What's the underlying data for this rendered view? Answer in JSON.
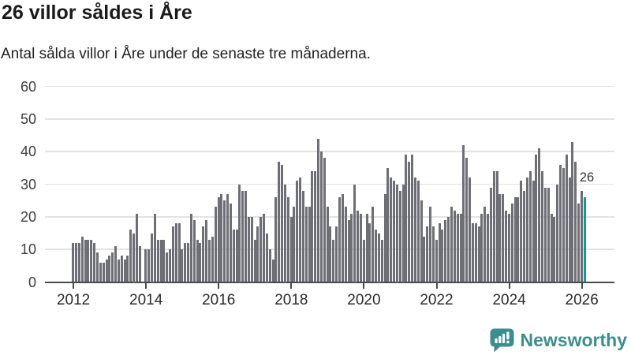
{
  "header": {
    "title": "26 villor såldes i Åre",
    "subtitle": "Antal sålda villor i Åre under de senaste tre månaderna."
  },
  "chart_data": {
    "type": "bar",
    "title": "26 villor såldes i Åre",
    "subtitle": "Antal sålda villor i Åre under de senaste tre månaderna.",
    "x_start_month": "2012-01",
    "x_end_month": "2026-02",
    "x_tick_labels": [
      "2012",
      "2014",
      "2016",
      "2018",
      "2020",
      "2022",
      "2024",
      "2026"
    ],
    "y_ticks": [
      0,
      10,
      20,
      30,
      40,
      50,
      60
    ],
    "ylim": [
      0,
      60
    ],
    "grid": "horizontal",
    "legend": "none",
    "bar_color": "#6E6E76",
    "highlight_color": "#0D9B9B",
    "highlight_index": 169,
    "annotation": {
      "text": "26",
      "index": 169
    },
    "values": [
      12,
      12,
      12,
      14,
      13,
      13,
      13,
      12,
      9,
      6,
      6,
      7,
      8,
      9,
      11,
      7,
      8,
      7,
      8,
      16,
      15,
      21,
      11,
      0,
      10,
      10,
      15,
      21,
      13,
      13,
      13,
      9,
      10,
      17,
      18,
      18,
      10,
      12,
      12,
      21,
      19,
      13,
      12,
      17,
      19,
      13,
      14,
      23,
      26,
      27,
      25,
      27,
      24,
      16,
      16,
      30,
      28,
      28,
      20,
      20,
      13,
      17,
      20,
      21,
      15,
      10,
      7,
      26,
      37,
      36,
      30,
      26,
      20,
      23,
      31,
      32,
      28,
      23,
      23,
      34,
      34,
      44,
      40,
      38,
      23,
      17,
      13,
      17,
      26,
      27,
      23,
      19,
      21,
      30,
      22,
      21,
      13,
      21,
      18,
      23,
      16,
      15,
      13,
      27,
      35,
      32,
      31,
      30,
      28,
      30,
      39,
      37,
      39,
      32,
      31,
      25,
      14,
      17,
      23,
      17,
      13,
      18,
      16,
      19,
      20,
      23,
      22,
      21,
      21,
      42,
      38,
      32,
      18,
      18,
      17,
      21,
      23,
      21,
      29,
      34,
      34,
      27,
      27,
      22,
      21,
      24,
      26,
      26,
      31,
      28,
      32,
      34,
      31,
      39,
      41,
      34,
      29,
      29,
      21,
      20,
      30,
      36,
      35,
      39,
      32,
      43,
      37,
      24,
      28,
      26
    ]
  },
  "footer": {
    "brand": "Newsworthy"
  },
  "colors": {
    "bar_gray": "#6E6E76",
    "highlight_teal": "#0D9B9B",
    "logo_teal": "#3C8E8C",
    "gridline": "#e2e2e2",
    "axis": "#4a4a4a",
    "text": "#1a1a1a"
  }
}
